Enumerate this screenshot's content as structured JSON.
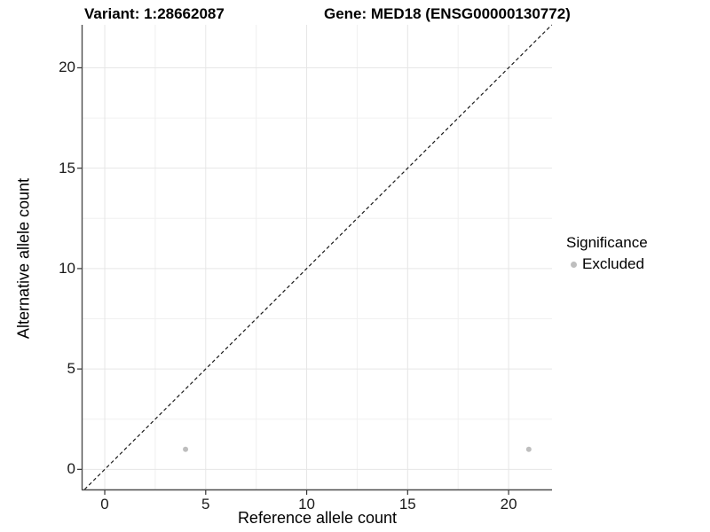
{
  "chart_data": {
    "type": "scatter",
    "title_left": "Variant: 1:28662087",
    "title_right": "Gene: MED18 (ENSG00000130772)",
    "xlabel": "Reference allele count",
    "ylabel": "Alternative allele count",
    "x_ticks": [
      0,
      5,
      10,
      15,
      20
    ],
    "y_ticks": [
      0,
      5,
      10,
      15,
      20
    ],
    "x_minor_ticks": [
      2.5,
      7.5,
      12.5,
      17.5
    ],
    "y_minor_ticks": [
      2.5,
      7.5,
      12.5,
      17.5
    ],
    "xlim": [
      -1.1,
      22.15
    ],
    "ylim": [
      -1.0,
      22.14
    ],
    "grid": true,
    "identity_line": {
      "style": "dashed",
      "x1": -1.0,
      "y1": -1.0,
      "x2": 22.14,
      "y2": 22.14
    },
    "series": [
      {
        "name": "Excluded",
        "color": "#bebebe",
        "points": [
          {
            "x": 4,
            "y": 1
          },
          {
            "x": 21,
            "y": 1
          }
        ]
      }
    ],
    "legend": {
      "position": "right",
      "title": "Significance",
      "entries": [
        {
          "label": "Excluded",
          "color": "#bebebe"
        }
      ]
    },
    "colors": {
      "background": "#ffffff",
      "grid_major": "#e6e6e6",
      "grid_minor": "#f0f0f0",
      "axis_line": "#4d4d4d",
      "tick_mark": "#333333",
      "tick_label": "#1a1a1a",
      "identity_line": "#1a1a1a",
      "point": "#bebebe"
    }
  }
}
